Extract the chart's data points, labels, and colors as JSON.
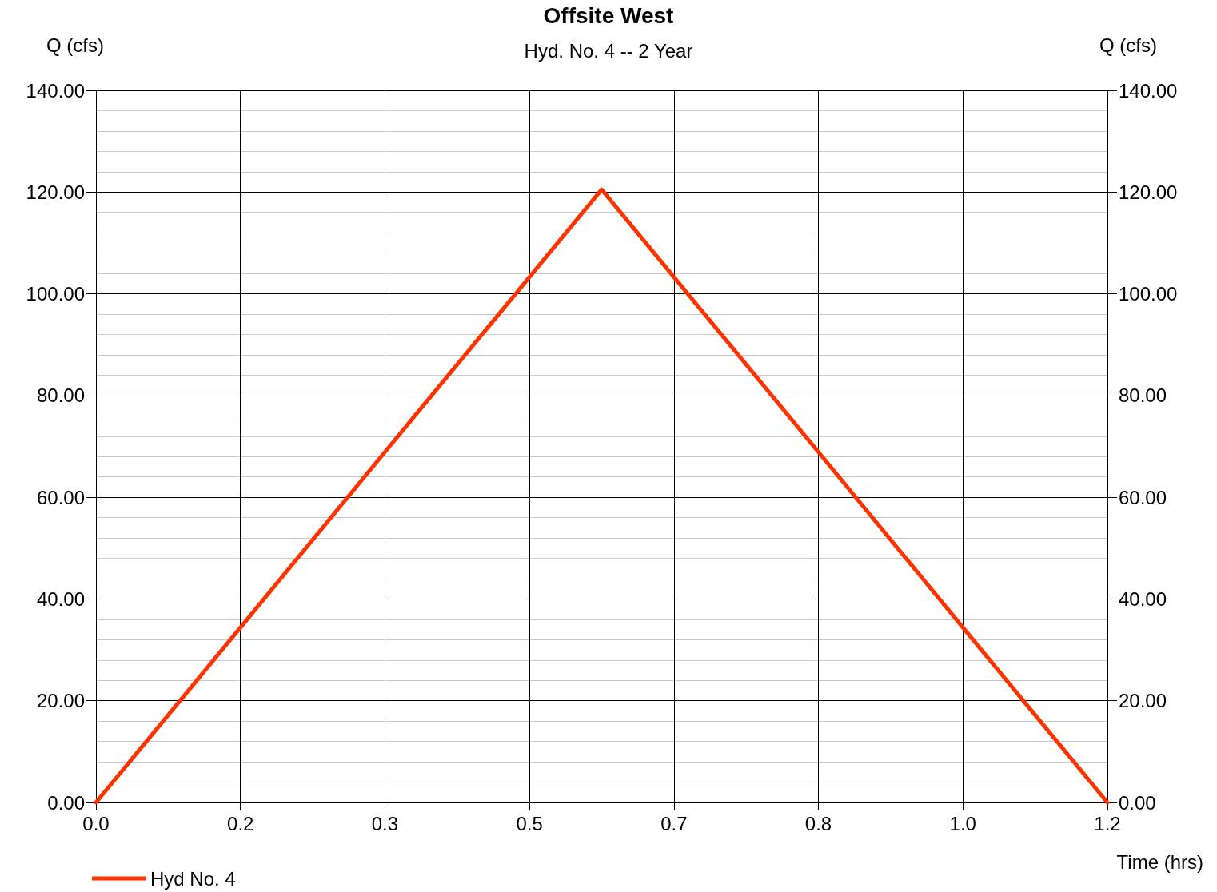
{
  "chart_data": {
    "type": "line",
    "title": "Offsite West",
    "subtitle": "Hyd. No. 4 -- 2 Year",
    "xlabel": "Time (hrs)",
    "ylabel": "Q (cfs)",
    "y2label": "Q (cfs)",
    "x": [
      0,
      0.1667,
      0.3333,
      0.5,
      0.5833,
      0.6667,
      0.8333,
      1.0,
      1.1667
    ],
    "series": [
      {
        "name": "Hyd No. 4",
        "color": "#ff3300",
        "values": [
          0,
          34.4,
          68.9,
          103.3,
          120.5,
          103.3,
          68.9,
          34.4,
          0
        ]
      }
    ],
    "xlim": [
      0,
      1.1667
    ],
    "xticks": [
      {
        "value": 0,
        "label": "0.0"
      },
      {
        "value": 0.1667,
        "label": "0.2"
      },
      {
        "value": 0.3333,
        "label": "0.3"
      },
      {
        "value": 0.5,
        "label": "0.5"
      },
      {
        "value": 0.6667,
        "label": "0.7"
      },
      {
        "value": 0.8333,
        "label": "0.8"
      },
      {
        "value": 1.0,
        "label": "1.0"
      },
      {
        "value": 1.1667,
        "label": "1.2"
      }
    ],
    "ylim": [
      0,
      140
    ],
    "yticks": [
      {
        "value": 0,
        "label": "0.00"
      },
      {
        "value": 20,
        "label": "20.00"
      },
      {
        "value": 40,
        "label": "40.00"
      },
      {
        "value": 60,
        "label": "60.00"
      },
      {
        "value": 80,
        "label": "80.00"
      },
      {
        "value": 100,
        "label": "100.00"
      },
      {
        "value": 120,
        "label": "120.00"
      },
      {
        "value": 140,
        "label": "140.00"
      }
    ],
    "y2lim": [
      0,
      140
    ],
    "y2ticks": [
      {
        "value": 0,
        "label": "0.00"
      },
      {
        "value": 20,
        "label": "20.00"
      },
      {
        "value": 40,
        "label": "40.00"
      },
      {
        "value": 60,
        "label": "60.00"
      },
      {
        "value": 80,
        "label": "80.00"
      },
      {
        "value": 100,
        "label": "100.00"
      },
      {
        "value": 120,
        "label": "120.00"
      },
      {
        "value": 140,
        "label": "140.00"
      }
    ],
    "grid": true,
    "legend": "bottom left",
    "marker": "none",
    "line_style": "solid"
  }
}
